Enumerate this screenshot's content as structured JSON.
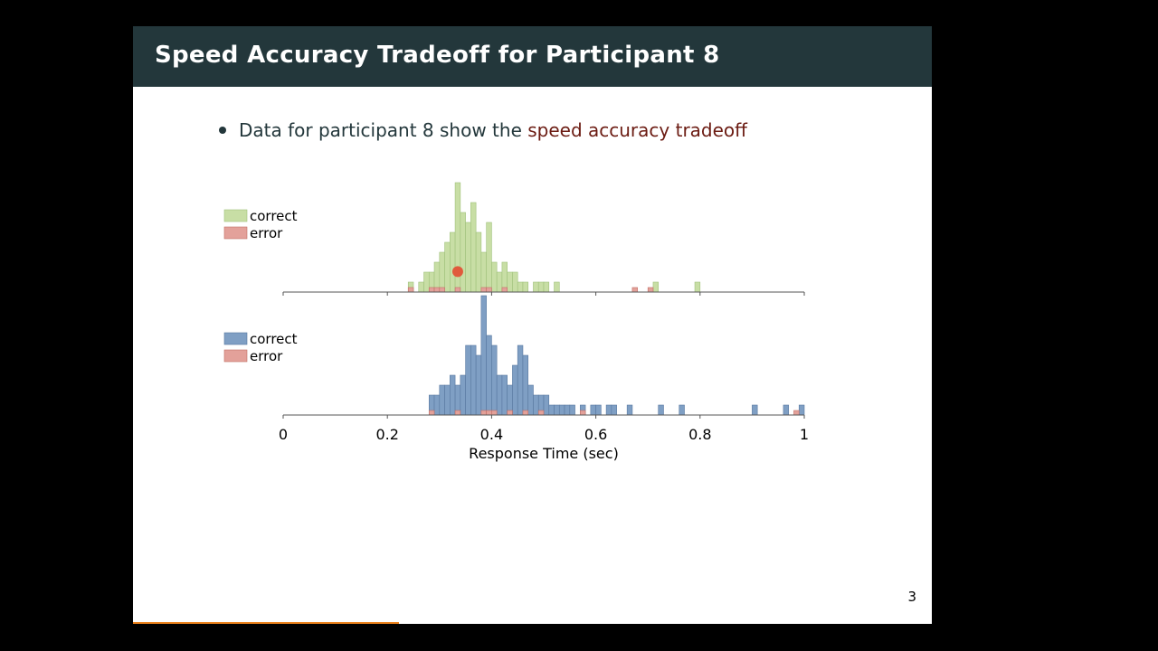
{
  "slide": {
    "title": "Speed Accuracy Tradeoff for Participant 8",
    "bullet_prefix": "Data for participant 8 show the ",
    "bullet_highlight": "speed accuracy tradeoff",
    "page_number": "3"
  },
  "colors": {
    "title_bar": "#23373b",
    "highlight": "#6b1b12",
    "progress": "#eb811b",
    "green_fill": "#c8dea5",
    "green_stroke": "#9fc17b",
    "blue_fill": "#7f9fc4",
    "blue_stroke": "#5878a0",
    "red_fill": "#e3a19a",
    "red_stroke": "#c26e64",
    "marker": "#e05a3c"
  },
  "chart_data": [
    {
      "type": "bar",
      "panel": "top",
      "xlim": [
        0,
        1
      ],
      "bin_width": 0.01,
      "legend": {
        "correct": "correct",
        "error": "error",
        "placement": "top-left"
      },
      "series": [
        {
          "name": "correct",
          "bins": [
            [
              0.24,
              1
            ],
            [
              0.26,
              1
            ],
            [
              0.27,
              2
            ],
            [
              0.28,
              2
            ],
            [
              0.29,
              3
            ],
            [
              0.3,
              4
            ],
            [
              0.31,
              5
            ],
            [
              0.32,
              6
            ],
            [
              0.33,
              11
            ],
            [
              0.34,
              8
            ],
            [
              0.35,
              7
            ],
            [
              0.36,
              9
            ],
            [
              0.37,
              6
            ],
            [
              0.38,
              4
            ],
            [
              0.39,
              7
            ],
            [
              0.4,
              3
            ],
            [
              0.41,
              2
            ],
            [
              0.42,
              3
            ],
            [
              0.43,
              2
            ],
            [
              0.44,
              2
            ],
            [
              0.45,
              1
            ],
            [
              0.46,
              1
            ],
            [
              0.48,
              1
            ],
            [
              0.49,
              1
            ],
            [
              0.5,
              1
            ],
            [
              0.52,
              1
            ],
            [
              0.71,
              1
            ],
            [
              0.79,
              1
            ]
          ]
        },
        {
          "name": "error",
          "bins": [
            [
              0.24,
              1
            ],
            [
              0.28,
              1
            ],
            [
              0.29,
              1
            ],
            [
              0.3,
              1
            ],
            [
              0.33,
              1
            ],
            [
              0.38,
              1
            ],
            [
              0.39,
              1
            ],
            [
              0.42,
              1
            ],
            [
              0.67,
              1
            ],
            [
              0.7,
              1
            ]
          ]
        }
      ],
      "marker": {
        "x": 0.33,
        "y": 2.6
      }
    },
    {
      "type": "bar",
      "panel": "bottom",
      "xlim": [
        0,
        1
      ],
      "xlabel": "Response Time (sec)",
      "xticks": [
        "0",
        "0.2",
        "0.4",
        "0.6",
        "0.8",
        "1"
      ],
      "bin_width": 0.01,
      "legend": {
        "correct": "correct",
        "error": "error",
        "placement": "top-left"
      },
      "series": [
        {
          "name": "correct",
          "bins": [
            [
              0.28,
              2
            ],
            [
              0.29,
              2
            ],
            [
              0.3,
              3
            ],
            [
              0.31,
              3
            ],
            [
              0.32,
              4
            ],
            [
              0.33,
              3
            ],
            [
              0.34,
              4
            ],
            [
              0.35,
              7
            ],
            [
              0.36,
              7
            ],
            [
              0.37,
              6
            ],
            [
              0.38,
              12
            ],
            [
              0.39,
              8
            ],
            [
              0.4,
              7
            ],
            [
              0.41,
              4
            ],
            [
              0.42,
              4
            ],
            [
              0.43,
              3
            ],
            [
              0.44,
              5
            ],
            [
              0.45,
              7
            ],
            [
              0.46,
              6
            ],
            [
              0.47,
              3
            ],
            [
              0.48,
              2
            ],
            [
              0.49,
              2
            ],
            [
              0.5,
              2
            ],
            [
              0.51,
              1
            ],
            [
              0.52,
              1
            ],
            [
              0.53,
              1
            ],
            [
              0.54,
              1
            ],
            [
              0.55,
              1
            ],
            [
              0.57,
              1
            ],
            [
              0.59,
              1
            ],
            [
              0.6,
              1
            ],
            [
              0.62,
              1
            ],
            [
              0.63,
              1
            ],
            [
              0.66,
              1
            ],
            [
              0.72,
              1
            ],
            [
              0.76,
              1
            ],
            [
              0.9,
              1
            ],
            [
              0.96,
              1
            ],
            [
              0.99,
              1
            ]
          ]
        },
        {
          "name": "error",
          "bins": [
            [
              0.28,
              1
            ],
            [
              0.33,
              1
            ],
            [
              0.38,
              1
            ],
            [
              0.39,
              1
            ],
            [
              0.4,
              1
            ],
            [
              0.43,
              1
            ],
            [
              0.46,
              1
            ],
            [
              0.49,
              1
            ],
            [
              0.57,
              1
            ],
            [
              0.98,
              1
            ]
          ]
        }
      ]
    }
  ]
}
